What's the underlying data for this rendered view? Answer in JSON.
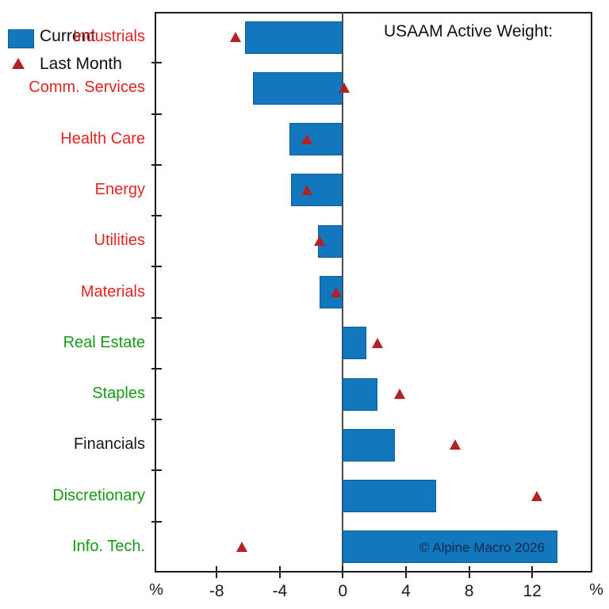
{
  "chart_data": {
    "type": "bar",
    "orientation": "horizontal",
    "title": "USAAM Active Weight:",
    "categories": [
      "Industrials",
      "Comm. Services",
      "Health Care",
      "Energy",
      "Utilities",
      "Materials",
      "Real Estate",
      "Staples",
      "Financials",
      "Discretionary",
      "Info. Tech."
    ],
    "category_colors": [
      "red",
      "red",
      "red",
      "red",
      "red",
      "red",
      "green",
      "green",
      "black",
      "green",
      "green"
    ],
    "series": [
      {
        "name": "Current",
        "marker": "bar",
        "values": [
          -6.2,
          -5.7,
          -3.4,
          -3.3,
          -1.6,
          -1.5,
          1.5,
          2.2,
          3.3,
          5.9,
          13.6
        ]
      },
      {
        "name": "Last Month",
        "marker": "triangle",
        "values": [
          -6.8,
          0.1,
          -2.3,
          -2.3,
          -1.5,
          -0.4,
          2.2,
          3.6,
          7.1,
          12.3,
          -6.4
        ]
      }
    ],
    "xlabel": "%",
    "x_ticks": [
      -8,
      -4,
      0,
      4,
      8,
      12
    ],
    "xlim": [
      -11.93,
      15.81
    ],
    "grid": false,
    "legend_position": "top-right"
  },
  "annotations": {
    "copyright": "© Alpine Macro 2026"
  },
  "colors": {
    "bar_fill": "#1377be",
    "bar_border": "#0d5c9d",
    "triangle": "#b22126",
    "label_red": "#e22420",
    "label_green": "#149b14",
    "label_black": "#1a1a1a",
    "axis": "#1c1c1c",
    "zero_line": "#4d4d4d",
    "copyright": "#12284b"
  }
}
